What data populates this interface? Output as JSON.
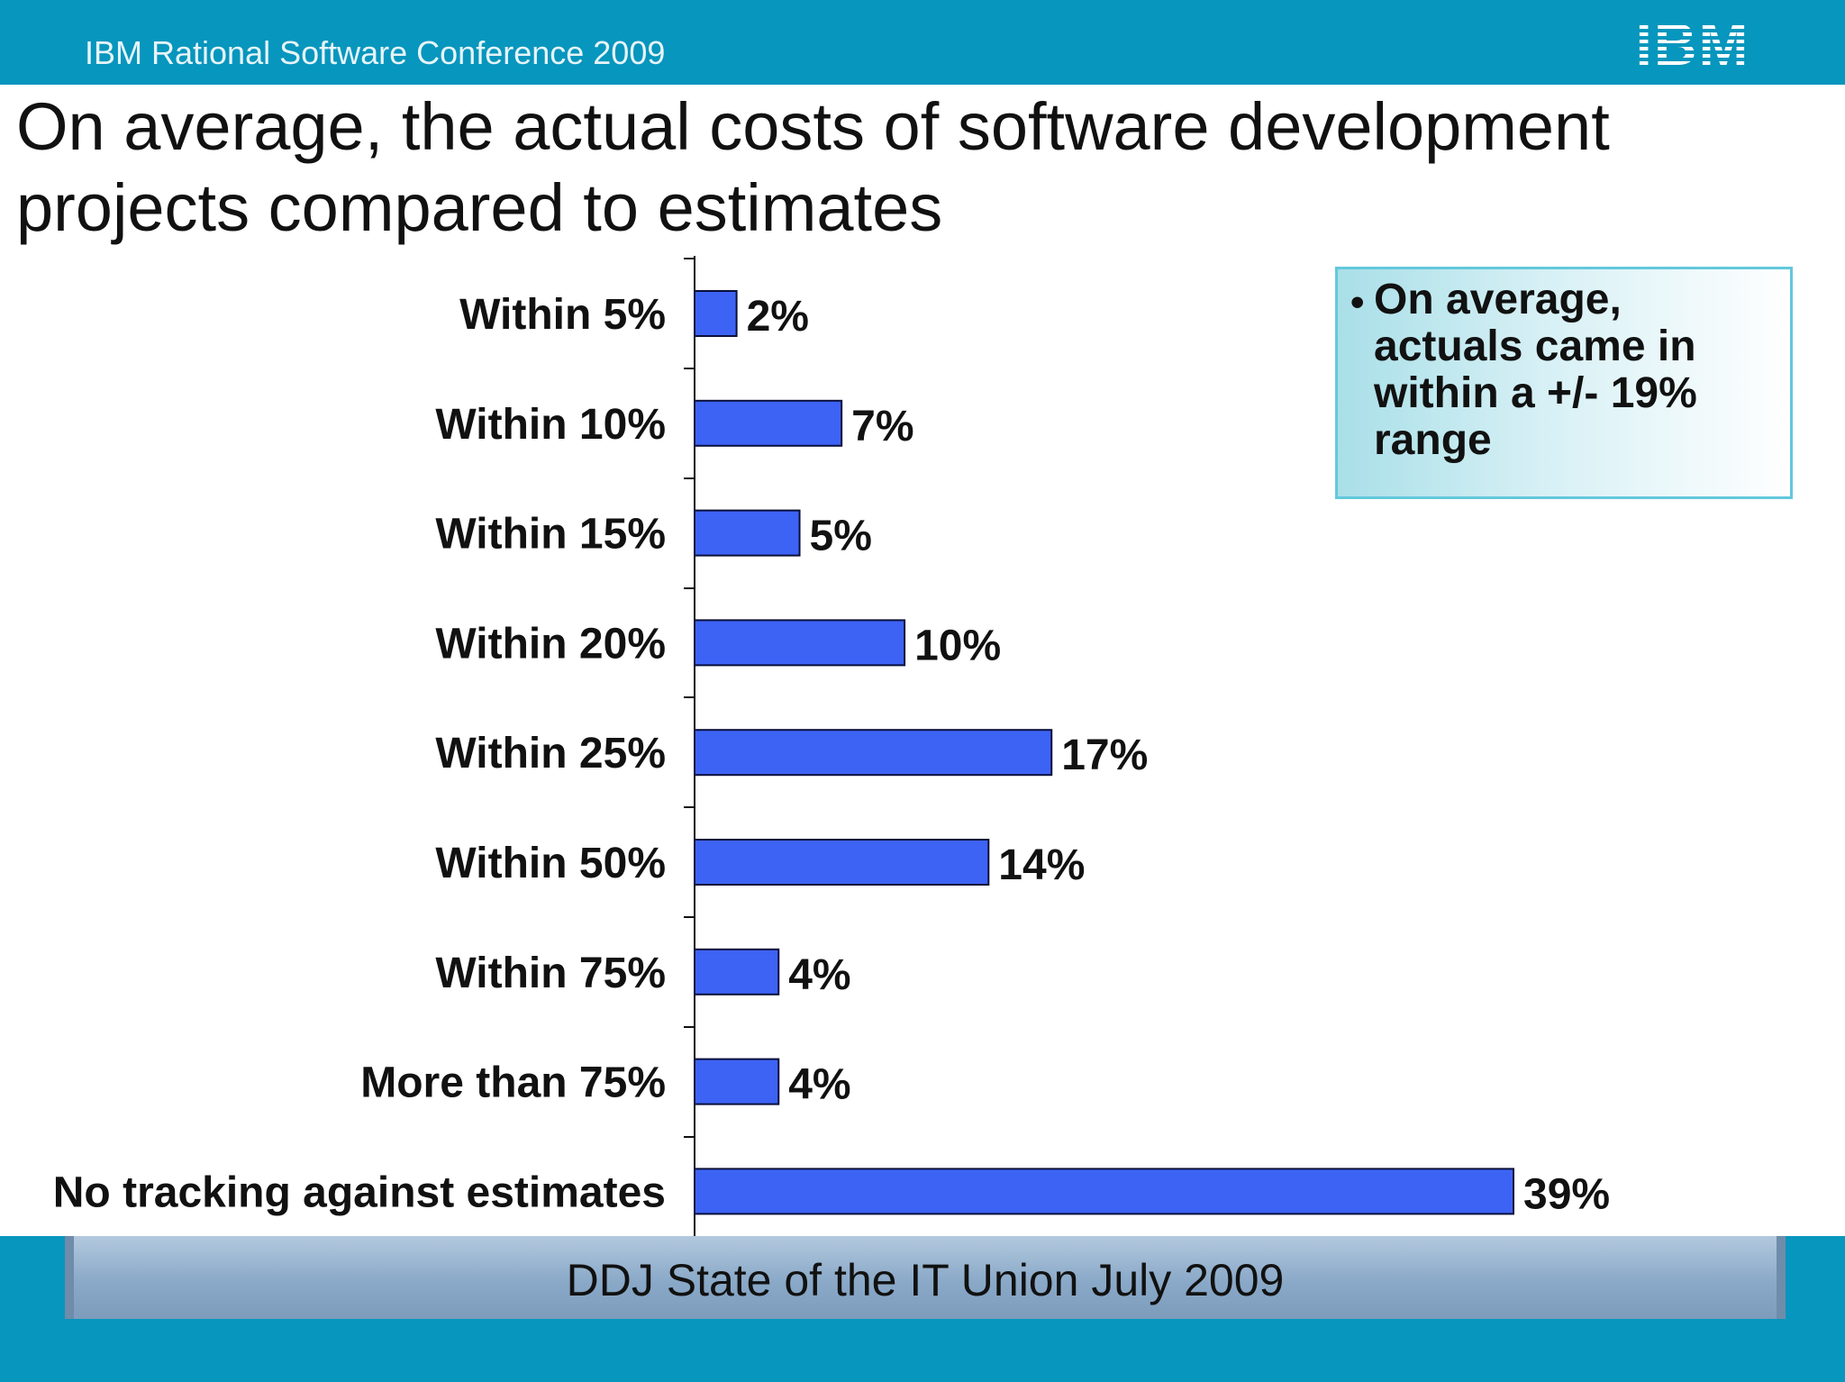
{
  "header": {
    "conference": "IBM Rational Software Conference 2009",
    "logo_text": "IBM",
    "logo_icon": "ibm-logo"
  },
  "slide": {
    "title_line1": "On average, the actual costs of software development",
    "title_line2": "projects compared to estimates"
  },
  "note": {
    "bullet": "•",
    "text": "On average, actuals came in within a +/- 19% range"
  },
  "footer": {
    "source": "DDJ State of the IT Union July 2009"
  },
  "colors": {
    "bar_fill": "#3d63f5",
    "bar_stroke": "#0a0f3a",
    "header_bg": "#0796bd"
  },
  "chart_data": {
    "type": "bar",
    "orientation": "horizontal",
    "categories": [
      "Within 5%",
      "Within 10%",
      "Within 15%",
      "Within 20%",
      "Within 25%",
      "Within 50%",
      "Within 75%",
      "More than 75%",
      "No tracking against estimates"
    ],
    "values": [
      2,
      7,
      5,
      10,
      17,
      14,
      4,
      4,
      39
    ],
    "value_labels": [
      "2%",
      "7%",
      "5%",
      "10%",
      "17%",
      "14%",
      "4%",
      "4%",
      "39%"
    ],
    "xlim": [
      0,
      39
    ],
    "grid": false,
    "legend": "none"
  }
}
